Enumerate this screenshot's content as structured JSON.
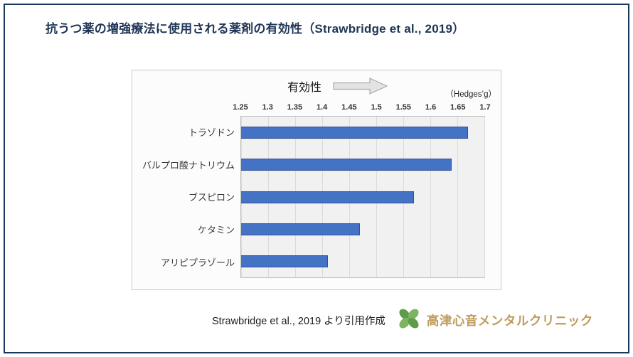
{
  "title": "抗うつ薬の増強療法に使用される薬剤の有効性（Strawbridge et al., 2019）",
  "chart_data": {
    "type": "bar",
    "orientation": "horizontal",
    "header_label": "有効性",
    "unit_label": "（Hedges’g）",
    "categories": [
      "トラゾドン",
      "バルプロ酸ナトリウム",
      "ブスピロン",
      "ケタミン",
      "アリピプラゾール"
    ],
    "values": [
      1.67,
      1.64,
      1.57,
      1.47,
      1.41
    ],
    "xlim": [
      1.25,
      1.7
    ],
    "tick_labels": [
      "1.25",
      "1.3",
      "1.35",
      "1.4",
      "1.45",
      "1.5",
      "1.55",
      "1.6",
      "1.65",
      "1.7"
    ],
    "grid": true,
    "legend": "none",
    "bar_color": "#4472C4",
    "bar_border_color": "#2E5395"
  },
  "caption": "Strawbridge et al., 2019 より引用作成",
  "logo": {
    "clinic_name": "高津心音メンタルクリニック",
    "icon": "clover-icon",
    "name_color": "#BE9C5C",
    "icon_colors": [
      "#5E9C49",
      "#7DB45F"
    ]
  },
  "colors": {
    "title_text": "#1F3556",
    "frame_border": "#17375E",
    "plot_background": "#F1F1F1"
  }
}
